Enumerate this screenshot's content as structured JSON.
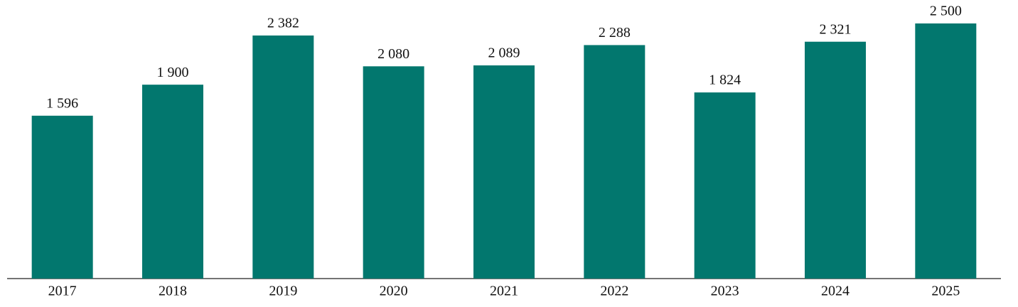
{
  "chart_data": {
    "type": "bar",
    "categories": [
      "2017",
      "2018",
      "2019",
      "2020",
      "2021",
      "2022",
      "2023",
      "2024",
      "2025"
    ],
    "values": [
      1596,
      1900,
      2382,
      2080,
      2089,
      2288,
      1824,
      2321,
      2500
    ],
    "value_labels": [
      "1 596",
      "1 900",
      "2 382",
      "2 080",
      "2 089",
      "2 288",
      "1 824",
      "2 321",
      "2 500"
    ],
    "color": "#02776e"
  }
}
